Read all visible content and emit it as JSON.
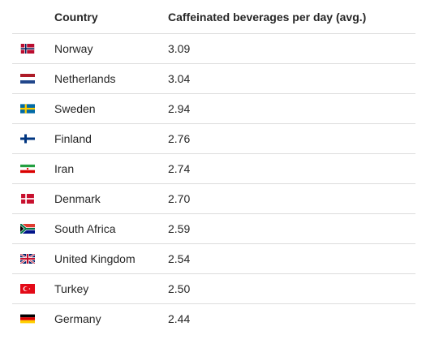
{
  "table": {
    "headers": {
      "country": "Country",
      "value": "Caffeinated beverages per day (avg.)"
    },
    "rows": [
      {
        "flag": "norway-flag-icon",
        "country": "Norway",
        "value": "3.09"
      },
      {
        "flag": "netherlands-flag-icon",
        "country": "Netherlands",
        "value": "3.04"
      },
      {
        "flag": "sweden-flag-icon",
        "country": "Sweden",
        "value": "2.94"
      },
      {
        "flag": "finland-flag-icon",
        "country": "Finland",
        "value": "2.76"
      },
      {
        "flag": "iran-flag-icon",
        "country": "Iran",
        "value": "2.74"
      },
      {
        "flag": "denmark-flag-icon",
        "country": "Denmark",
        "value": "2.70"
      },
      {
        "flag": "south-africa-flag-icon",
        "country": "South Africa",
        "value": "2.59"
      },
      {
        "flag": "united-kingdom-flag-icon",
        "country": "United Kingdom",
        "value": "2.54"
      },
      {
        "flag": "turkey-flag-icon",
        "country": "Turkey",
        "value": "2.50"
      },
      {
        "flag": "germany-flag-icon",
        "country": "Germany",
        "value": "2.44"
      }
    ]
  }
}
